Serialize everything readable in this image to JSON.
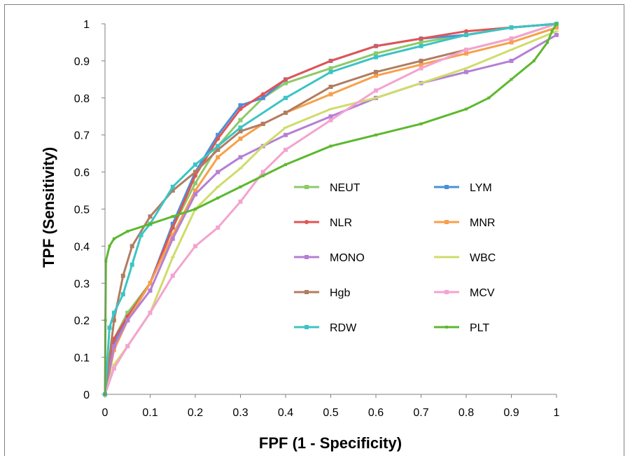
{
  "chart_data": {
    "type": "line",
    "title": "",
    "xlabel": "FPF (1 - Specificity)",
    "ylabel": "TPF (Sensitivity)",
    "xlim": [
      0,
      1
    ],
    "ylim": [
      0,
      1
    ],
    "xticks": [
      "0",
      "0.1",
      "0.2",
      "0.3",
      "0.4",
      "0.5",
      "0.6",
      "0.7",
      "0.8",
      "0.9",
      "1"
    ],
    "yticks": [
      "0",
      "0.1",
      "0.2",
      "0.3",
      "0.4",
      "0.5",
      "0.6",
      "0.7",
      "0.8",
      "0.9",
      "1"
    ],
    "grid": false,
    "legend_position": "center-right",
    "series": [
      {
        "name": "NEUT",
        "color": "#8dc96a",
        "marker": "square",
        "x": [
          0,
          0.02,
          0.05,
          0.1,
          0.15,
          0.2,
          0.25,
          0.3,
          0.35,
          0.4,
          0.5,
          0.6,
          0.7,
          0.8,
          0.9,
          1
        ],
        "y": [
          0,
          0.15,
          0.22,
          0.3,
          0.45,
          0.57,
          0.67,
          0.74,
          0.8,
          0.84,
          0.88,
          0.92,
          0.95,
          0.97,
          0.99,
          1
        ]
      },
      {
        "name": "LYM",
        "color": "#4a90d9",
        "marker": "square",
        "x": [
          0,
          0.02,
          0.05,
          0.1,
          0.15,
          0.2,
          0.25,
          0.3,
          0.35,
          0.4,
          0.5,
          0.6,
          0.7,
          0.8,
          0.9,
          1
        ],
        "y": [
          0,
          0.14,
          0.2,
          0.3,
          0.46,
          0.6,
          0.7,
          0.78,
          0.8,
          0.85,
          0.9,
          0.94,
          0.96,
          0.97,
          0.99,
          1
        ]
      },
      {
        "name": "NLR",
        "color": "#e05555",
        "marker": "circle",
        "x": [
          0,
          0.02,
          0.05,
          0.1,
          0.15,
          0.2,
          0.25,
          0.3,
          0.35,
          0.4,
          0.5,
          0.6,
          0.7,
          0.8,
          0.9,
          1
        ],
        "y": [
          0,
          0.15,
          0.21,
          0.3,
          0.45,
          0.59,
          0.69,
          0.77,
          0.81,
          0.85,
          0.9,
          0.94,
          0.96,
          0.98,
          0.99,
          1
        ]
      },
      {
        "name": "MNR",
        "color": "#f7a04a",
        "marker": "square",
        "x": [
          0,
          0.02,
          0.05,
          0.1,
          0.15,
          0.2,
          0.25,
          0.3,
          0.35,
          0.4,
          0.5,
          0.6,
          0.7,
          0.8,
          0.9,
          1
        ],
        "y": [
          0,
          0.12,
          0.2,
          0.3,
          0.43,
          0.55,
          0.64,
          0.69,
          0.73,
          0.76,
          0.81,
          0.86,
          0.89,
          0.92,
          0.95,
          0.99
        ]
      },
      {
        "name": "MONO",
        "color": "#b57fd4",
        "marker": "square",
        "x": [
          0,
          0.02,
          0.05,
          0.1,
          0.15,
          0.2,
          0.25,
          0.3,
          0.35,
          0.4,
          0.5,
          0.6,
          0.7,
          0.8,
          0.9,
          1
        ],
        "y": [
          0,
          0.13,
          0.2,
          0.28,
          0.42,
          0.54,
          0.6,
          0.64,
          0.67,
          0.7,
          0.75,
          0.8,
          0.84,
          0.87,
          0.9,
          0.97
        ]
      },
      {
        "name": "WBC",
        "color": "#cfdc6a",
        "marker": "dash",
        "x": [
          0,
          0.02,
          0.05,
          0.1,
          0.15,
          0.2,
          0.25,
          0.3,
          0.35,
          0.4,
          0.5,
          0.6,
          0.7,
          0.8,
          0.9,
          1
        ],
        "y": [
          0,
          0.08,
          0.13,
          0.22,
          0.37,
          0.5,
          0.56,
          0.61,
          0.67,
          0.72,
          0.77,
          0.8,
          0.84,
          0.88,
          0.93,
          0.98
        ]
      },
      {
        "name": "Hgb",
        "color": "#b07d62",
        "marker": "square",
        "x": [
          0,
          0.02,
          0.04,
          0.06,
          0.1,
          0.15,
          0.2,
          0.25,
          0.3,
          0.35,
          0.4,
          0.5,
          0.6,
          0.7,
          0.8,
          0.9,
          1
        ],
        "y": [
          0,
          0.2,
          0.32,
          0.4,
          0.48,
          0.55,
          0.6,
          0.66,
          0.71,
          0.73,
          0.76,
          0.83,
          0.87,
          0.9,
          0.93,
          0.96,
          1
        ]
      },
      {
        "name": "MCV",
        "color": "#f4a3d0",
        "marker": "square",
        "x": [
          0,
          0.02,
          0.05,
          0.1,
          0.15,
          0.2,
          0.25,
          0.3,
          0.35,
          0.4,
          0.5,
          0.6,
          0.7,
          0.8,
          0.9,
          1
        ],
        "y": [
          0,
          0.07,
          0.13,
          0.22,
          0.32,
          0.4,
          0.45,
          0.52,
          0.6,
          0.66,
          0.74,
          0.82,
          0.88,
          0.93,
          0.96,
          1
        ]
      },
      {
        "name": "RDW",
        "color": "#3cc4c4",
        "marker": "square",
        "x": [
          0,
          0.01,
          0.02,
          0.04,
          0.06,
          0.08,
          0.1,
          0.15,
          0.2,
          0.25,
          0.3,
          0.4,
          0.5,
          0.6,
          0.7,
          0.8,
          0.9,
          1
        ],
        "y": [
          0,
          0.18,
          0.22,
          0.27,
          0.35,
          0.43,
          0.46,
          0.56,
          0.62,
          0.67,
          0.72,
          0.8,
          0.87,
          0.91,
          0.94,
          0.97,
          0.99,
          1
        ]
      },
      {
        "name": "PLT",
        "color": "#5cb82e",
        "marker": "dot",
        "x": [
          0,
          0.001,
          0.002,
          0.01,
          0.02,
          0.05,
          0.1,
          0.15,
          0.2,
          0.25,
          0.3,
          0.35,
          0.4,
          0.5,
          0.6,
          0.7,
          0.8,
          0.85,
          0.9,
          0.95,
          0.98,
          0.99,
          1
        ],
        "y": [
          0,
          0.2,
          0.36,
          0.4,
          0.42,
          0.44,
          0.46,
          0.48,
          0.5,
          0.53,
          0.56,
          0.59,
          0.62,
          0.67,
          0.7,
          0.73,
          0.77,
          0.8,
          0.85,
          0.9,
          0.95,
          0.98,
          1
        ]
      }
    ]
  }
}
